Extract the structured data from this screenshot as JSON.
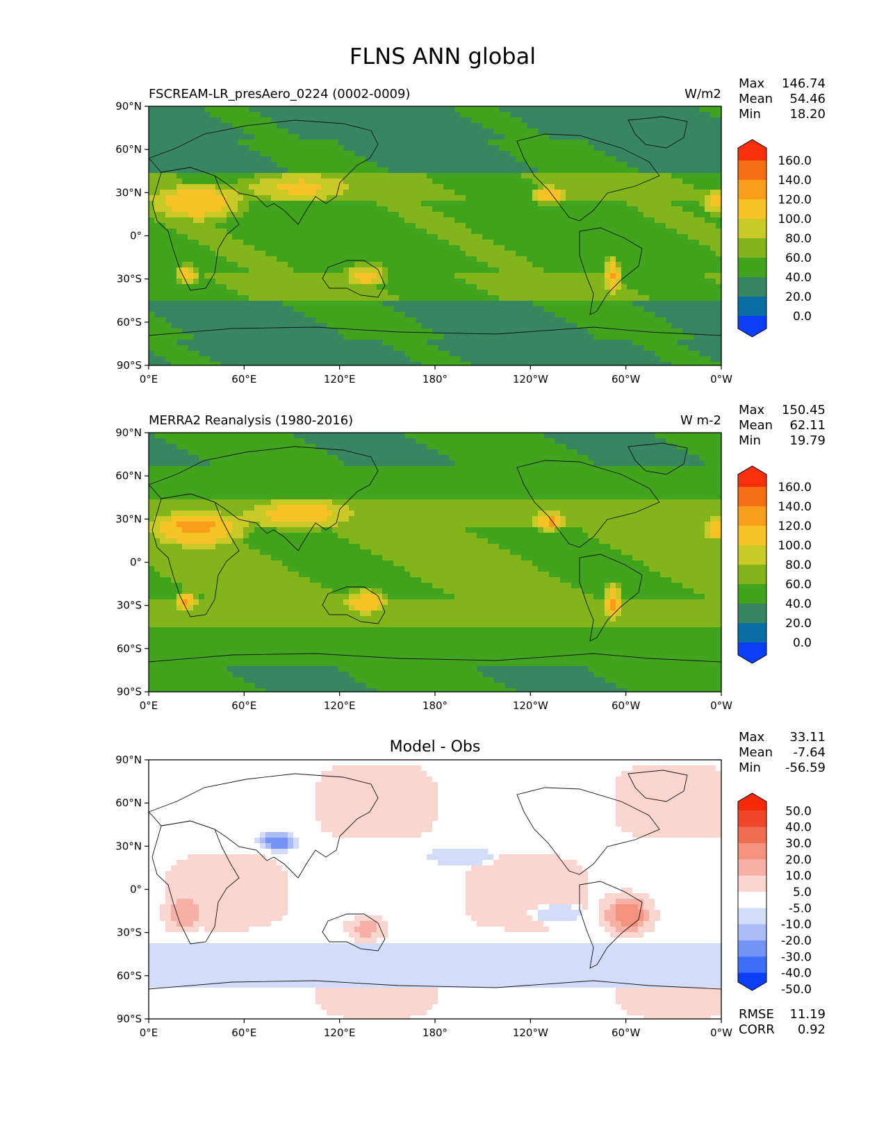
{
  "title": "FLNS ANN global",
  "x_ticks": [
    "0°E",
    "60°E",
    "120°E",
    "180°",
    "120°W",
    "60°W",
    "0°W"
  ],
  "y_ticks": [
    "90°N",
    "60°N",
    "30°N",
    "0°",
    "30°S",
    "60°S",
    "90°S"
  ],
  "colors": {
    "fill_levels": [
      "#0a3ef7",
      "#0a6ea4",
      "#388660",
      "#42a31f",
      "#82b51c",
      "#c9c928",
      "#f6c225",
      "#f89e1b",
      "#f86e12",
      "#f72f0b"
    ],
    "diff_levels": [
      "#0a3ef7",
      "#3f6ef8",
      "#7393f5",
      "#a9bcf5",
      "#d3dcf8",
      "#ffffff",
      "#fbd6d1",
      "#f7b0a6",
      "#f3927f",
      "#ef6f55",
      "#f1462c",
      "#f52a0a"
    ]
  },
  "chart_data": [
    {
      "type": "heatmap",
      "title": "FSCREAM-LR_presAero_0224 (0002-0009)",
      "units": "W/m2",
      "stats": [
        {
          "label": "Max",
          "value": "146.74"
        },
        {
          "label": "Mean",
          "value": "54.46"
        },
        {
          "label": "Min",
          "value": "18.20"
        }
      ],
      "colorbar_ticks": [
        "160.0",
        "140.0",
        "120.0",
        "100.0",
        "80.0",
        "60.0",
        "40.0",
        "20.0",
        "0.0"
      ],
      "xlim": [
        0,
        360
      ],
      "ylim": [
        -90,
        90
      ]
    },
    {
      "type": "heatmap",
      "title": "MERRA2 Reanalysis (1980-2016)",
      "units": "W m-2",
      "stats": [
        {
          "label": "Max",
          "value": "150.45"
        },
        {
          "label": "Mean",
          "value": "62.11"
        },
        {
          "label": "Min",
          "value": "19.79"
        }
      ],
      "colorbar_ticks": [
        "160.0",
        "140.0",
        "120.0",
        "100.0",
        "80.0",
        "60.0",
        "40.0",
        "20.0",
        "0.0"
      ],
      "xlim": [
        0,
        360
      ],
      "ylim": [
        -90,
        90
      ]
    },
    {
      "type": "heatmap",
      "title": "Model - Obs",
      "units": "",
      "stats": [
        {
          "label": "Max",
          "value": "33.11"
        },
        {
          "label": "Mean",
          "value": "-7.64"
        },
        {
          "label": "Min",
          "value": "-56.59"
        }
      ],
      "colorbar_ticks": [
        "50.0",
        "40.0",
        "30.0",
        "20.0",
        "10.0",
        "5.0",
        "-5.0",
        "-10.0",
        "-20.0",
        "-30.0",
        "-40.0",
        "-50.0"
      ],
      "extra_stats": [
        {
          "label": "RMSE",
          "value": "11.19"
        },
        {
          "label": "CORR",
          "value": "0.92"
        }
      ],
      "xlim": [
        0,
        360
      ],
      "ylim": [
        -90,
        90
      ]
    }
  ]
}
